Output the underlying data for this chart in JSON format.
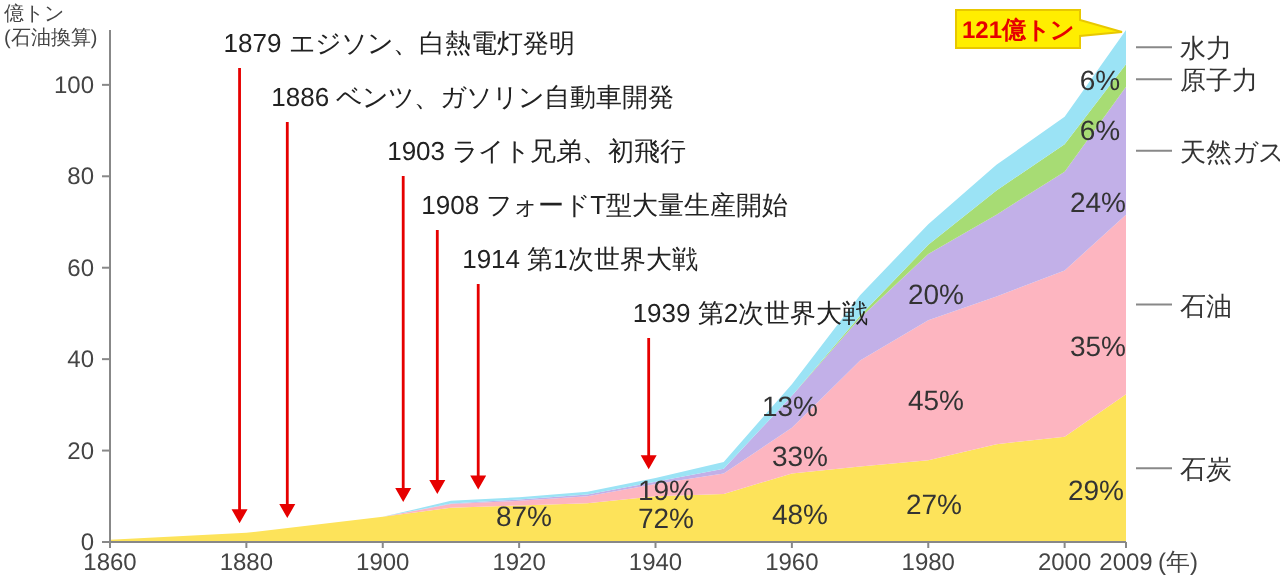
{
  "chart_data": {
    "type": "area",
    "stacked": true,
    "ylabel": "億トン\n(石油換算)",
    "xlabel": "(年)",
    "x": [
      1860,
      1880,
      1900,
      1910,
      1920,
      1930,
      1940,
      1950,
      1960,
      1970,
      1980,
      1990,
      2000,
      2009
    ],
    "xlim": [
      1860,
      2009
    ],
    "ylim": [
      0,
      112
    ],
    "xticks": [
      1860,
      1880,
      1900,
      1920,
      1940,
      1960,
      1980,
      2000,
      2009
    ],
    "yticks": [
      0,
      20,
      40,
      60,
      80,
      100
    ],
    "series": [
      {
        "name": "石炭",
        "color": "#fde35a",
        "values": [
          0.5,
          2,
          5.5,
          7.5,
          8,
          8.5,
          10,
          10.5,
          15,
          16.5,
          17.9,
          21.4,
          23,
          32.3
        ]
      },
      {
        "name": "石油",
        "color": "#fdb5c0",
        "values": [
          0,
          0,
          0,
          0.8,
          1,
          1.5,
          2.7,
          4.5,
          10,
          23.2,
          30.6,
          32.3,
          36.4,
          39.3
        ]
      },
      {
        "name": "天然ガス",
        "color": "#c2b0e8",
        "values": [
          0,
          0,
          0,
          0.1,
          0.3,
          0.4,
          0.5,
          1,
          7,
          9.3,
          14.5,
          17.9,
          21.6,
          28
        ]
      },
      {
        "name": "原子力",
        "color": "#a7dc74",
        "values": [
          0,
          0,
          0,
          0,
          0,
          0,
          0,
          0,
          0,
          0.5,
          2,
          5.3,
          6,
          4.9
        ]
      },
      {
        "name": "水力",
        "color": "#9be3f5",
        "values": [
          0,
          0,
          0,
          0.6,
          0.5,
          0.6,
          0.8,
          1.5,
          2.5,
          4.5,
          4.5,
          5.6,
          6,
          7.5
        ]
      }
    ],
    "annotations": [
      "1879 エジソン、白熱電灯発明",
      "1886 ベンツ、ガソリン自動車開発",
      "1903 ライト兄弟、初飛行",
      "1908 フォードT型大量生産開始",
      "1914 第1次世界大戦",
      "1939 第2次世界大戦",
      "121億トン",
      "87%",
      "72%",
      "19%",
      "48%",
      "33%",
      "13%",
      "27%",
      "45%",
      "20%",
      "29%",
      "35%",
      "24%",
      "6%",
      "6%"
    ]
  }
}
